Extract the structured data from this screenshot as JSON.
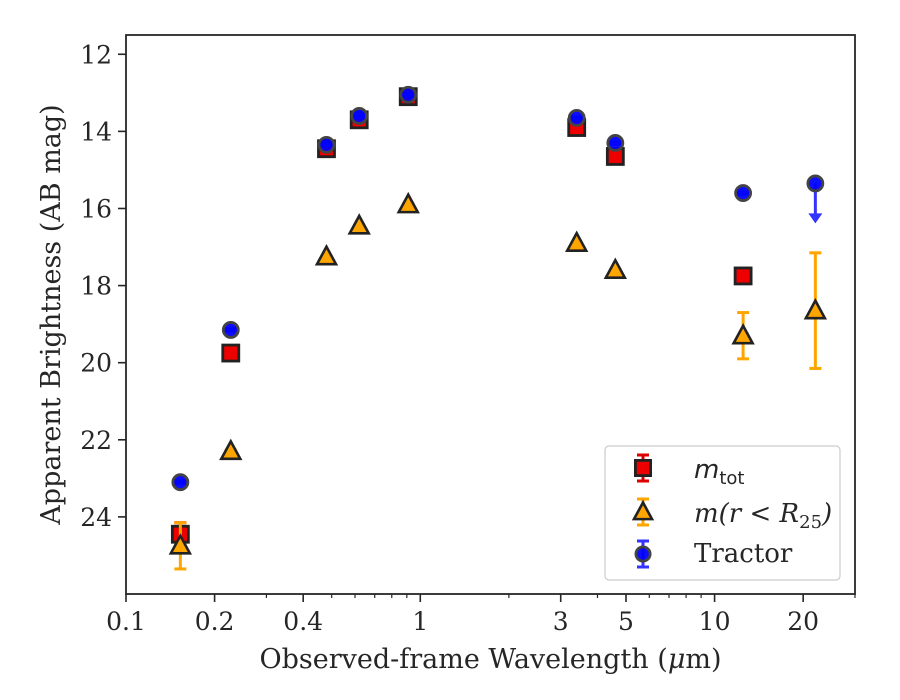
{
  "chart_data": {
    "type": "scatter",
    "xlabel": {
      "prefix": "Observed-frame Wavelength (",
      "mu": "μ",
      "suffix": "m)"
    },
    "ylabel": "Apparent Brightness (AB mag)",
    "x_scale": "log",
    "y_inverted": true,
    "xlim": [
      0.1,
      30
    ],
    "ylim": [
      11.5,
      26.0
    ],
    "x_ticks": [
      {
        "value": 0.1,
        "label": "0.1"
      },
      {
        "value": 0.2,
        "label": "0.2"
      },
      {
        "value": 0.4,
        "label": "0.4"
      },
      {
        "value": 1,
        "label": "1"
      },
      {
        "value": 3,
        "label": "3"
      },
      {
        "value": 5,
        "label": "5"
      },
      {
        "value": 10,
        "label": "10"
      },
      {
        "value": 20,
        "label": "20"
      }
    ],
    "x_minor_ticks": [
      0.3,
      0.5,
      0.6,
      0.7,
      0.8,
      0.9,
      2,
      4,
      6,
      7,
      8,
      9,
      30
    ],
    "y_ticks": [
      {
        "value": 12,
        "label": "12"
      },
      {
        "value": 14,
        "label": "14"
      },
      {
        "value": 16,
        "label": "16"
      },
      {
        "value": 18,
        "label": "18"
      },
      {
        "value": 20,
        "label": "20"
      },
      {
        "value": 22,
        "label": "22"
      },
      {
        "value": 24,
        "label": "24"
      }
    ],
    "grid": false,
    "legend_position": "lower-right",
    "series": [
      {
        "key": "mtot",
        "label": {
          "main": "m",
          "sub": "tot"
        },
        "marker": "square",
        "color": "#ee0000",
        "error_color": "#dd0000",
        "points": [
          {
            "x": 0.153,
            "y": 24.45,
            "err": 0.3
          },
          {
            "x": 0.227,
            "y": 19.75,
            "err": 0.05
          },
          {
            "x": 0.48,
            "y": 14.45,
            "err": 0.08
          },
          {
            "x": 0.62,
            "y": 13.7,
            "err": 0.08
          },
          {
            "x": 0.91,
            "y": 13.1,
            "err": 0.08
          },
          {
            "x": 3.4,
            "y": 13.9,
            "err": 0.05
          },
          {
            "x": 4.6,
            "y": 14.65,
            "err": 0.05
          },
          {
            "x": 12.5,
            "y": 17.75,
            "err": 0.05
          }
        ]
      },
      {
        "key": "mr25",
        "label": {
          "main": "m",
          "paren": "(r < R",
          "sub": "25",
          "close": ")"
        },
        "marker": "triangle",
        "color": "#ffa500",
        "error_color": "#ffa500",
        "points": [
          {
            "x": 0.153,
            "y": 24.75,
            "err": 0.6
          },
          {
            "x": 0.227,
            "y": 22.3,
            "err": 0.03
          },
          {
            "x": 0.48,
            "y": 17.25,
            "err": 0.02
          },
          {
            "x": 0.62,
            "y": 16.45,
            "err": 0.02
          },
          {
            "x": 0.91,
            "y": 15.9,
            "err": 0.02
          },
          {
            "x": 3.4,
            "y": 16.9,
            "err": 0.02
          },
          {
            "x": 4.6,
            "y": 17.6,
            "err": 0.02
          },
          {
            "x": 12.5,
            "y": 19.3,
            "err": 0.6
          },
          {
            "x": 22,
            "y": 18.65,
            "err": 1.5
          }
        ]
      },
      {
        "key": "tractor",
        "label": {
          "main": "Tractor"
        },
        "marker": "circle",
        "color": "#0000ff",
        "error_color": "#3333ff",
        "points": [
          {
            "x": 0.153,
            "y": 23.1,
            "err": 0.03
          },
          {
            "x": 0.227,
            "y": 19.15,
            "err": 0.03
          },
          {
            "x": 0.48,
            "y": 14.35,
            "err": 0.03
          },
          {
            "x": 0.62,
            "y": 13.6,
            "err": 0.03
          },
          {
            "x": 0.91,
            "y": 13.05,
            "err": 0.03
          },
          {
            "x": 3.4,
            "y": 13.65,
            "err": 0.03
          },
          {
            "x": 4.6,
            "y": 14.3,
            "err": 0.03
          },
          {
            "x": 12.5,
            "y": 15.6,
            "err": 0.03
          },
          {
            "x": 22,
            "y": 15.35,
            "upper_limit": true
          }
        ]
      }
    ]
  }
}
